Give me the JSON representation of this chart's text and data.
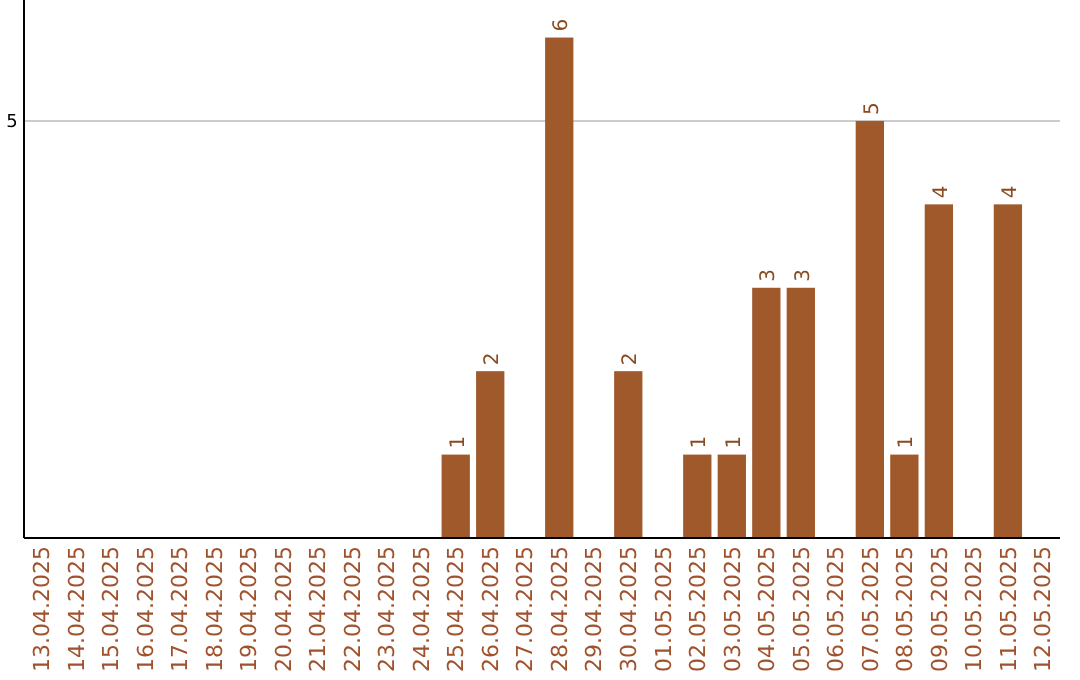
{
  "chart_data": {
    "type": "bar",
    "categories": [
      "13.04.2025",
      "14.04.2025",
      "15.04.2025",
      "16.04.2025",
      "17.04.2025",
      "18.04.2025",
      "19.04.2025",
      "20.04.2025",
      "21.04.2025",
      "22.04.2025",
      "23.04.2025",
      "24.04.2025",
      "25.04.2025",
      "26.04.2025",
      "27.04.2025",
      "28.04.2025",
      "29.04.2025",
      "30.04.2025",
      "01.05.2025",
      "02.05.2025",
      "03.05.2025",
      "04.05.2025",
      "05.05.2025",
      "06.05.2025",
      "07.05.2025",
      "08.05.2025",
      "09.05.2025",
      "10.05.2025",
      "11.05.2025",
      "12.05.2025"
    ],
    "values": [
      null,
      null,
      null,
      null,
      null,
      null,
      null,
      null,
      null,
      null,
      null,
      null,
      1,
      2,
      null,
      6,
      null,
      2,
      null,
      1,
      1,
      3,
      3,
      null,
      5,
      1,
      4,
      null,
      4,
      null
    ],
    "data_labels": true,
    "color": "#a0592a",
    "ylim": [
      0,
      6.45
    ],
    "yticks": [
      5
    ],
    "grid": "y"
  }
}
